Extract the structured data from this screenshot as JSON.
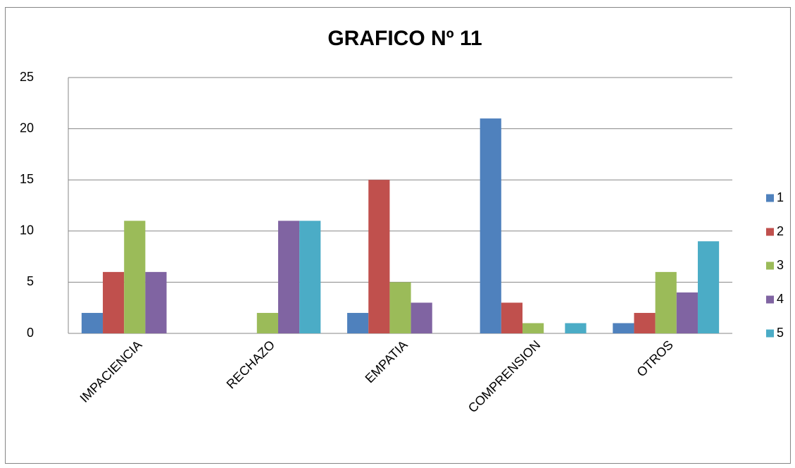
{
  "chart_data": {
    "type": "bar",
    "title": "GRAFICO Nº 11",
    "categories": [
      "IMPACIENCIA",
      "RECHAZO",
      "EMPATIA",
      "COMPRENSION",
      "OTROS"
    ],
    "series": [
      {
        "name": "1",
        "color": "#4f81bd",
        "values": [
          2,
          0,
          2,
          21,
          1
        ]
      },
      {
        "name": "2",
        "color": "#c0504d",
        "values": [
          6,
          0,
          15,
          3,
          2
        ]
      },
      {
        "name": "3",
        "color": "#9bbb59",
        "values": [
          11,
          2,
          5,
          1,
          6
        ]
      },
      {
        "name": "4",
        "color": "#8064a2",
        "values": [
          6,
          11,
          3,
          0,
          4
        ]
      },
      {
        "name": "5",
        "color": "#4bacc6",
        "values": [
          0,
          11,
          0,
          1,
          9
        ]
      }
    ],
    "ylim": [
      0,
      25
    ],
    "yticks": [
      0,
      5,
      10,
      15,
      20,
      25
    ],
    "grid": true,
    "legend": "right"
  }
}
